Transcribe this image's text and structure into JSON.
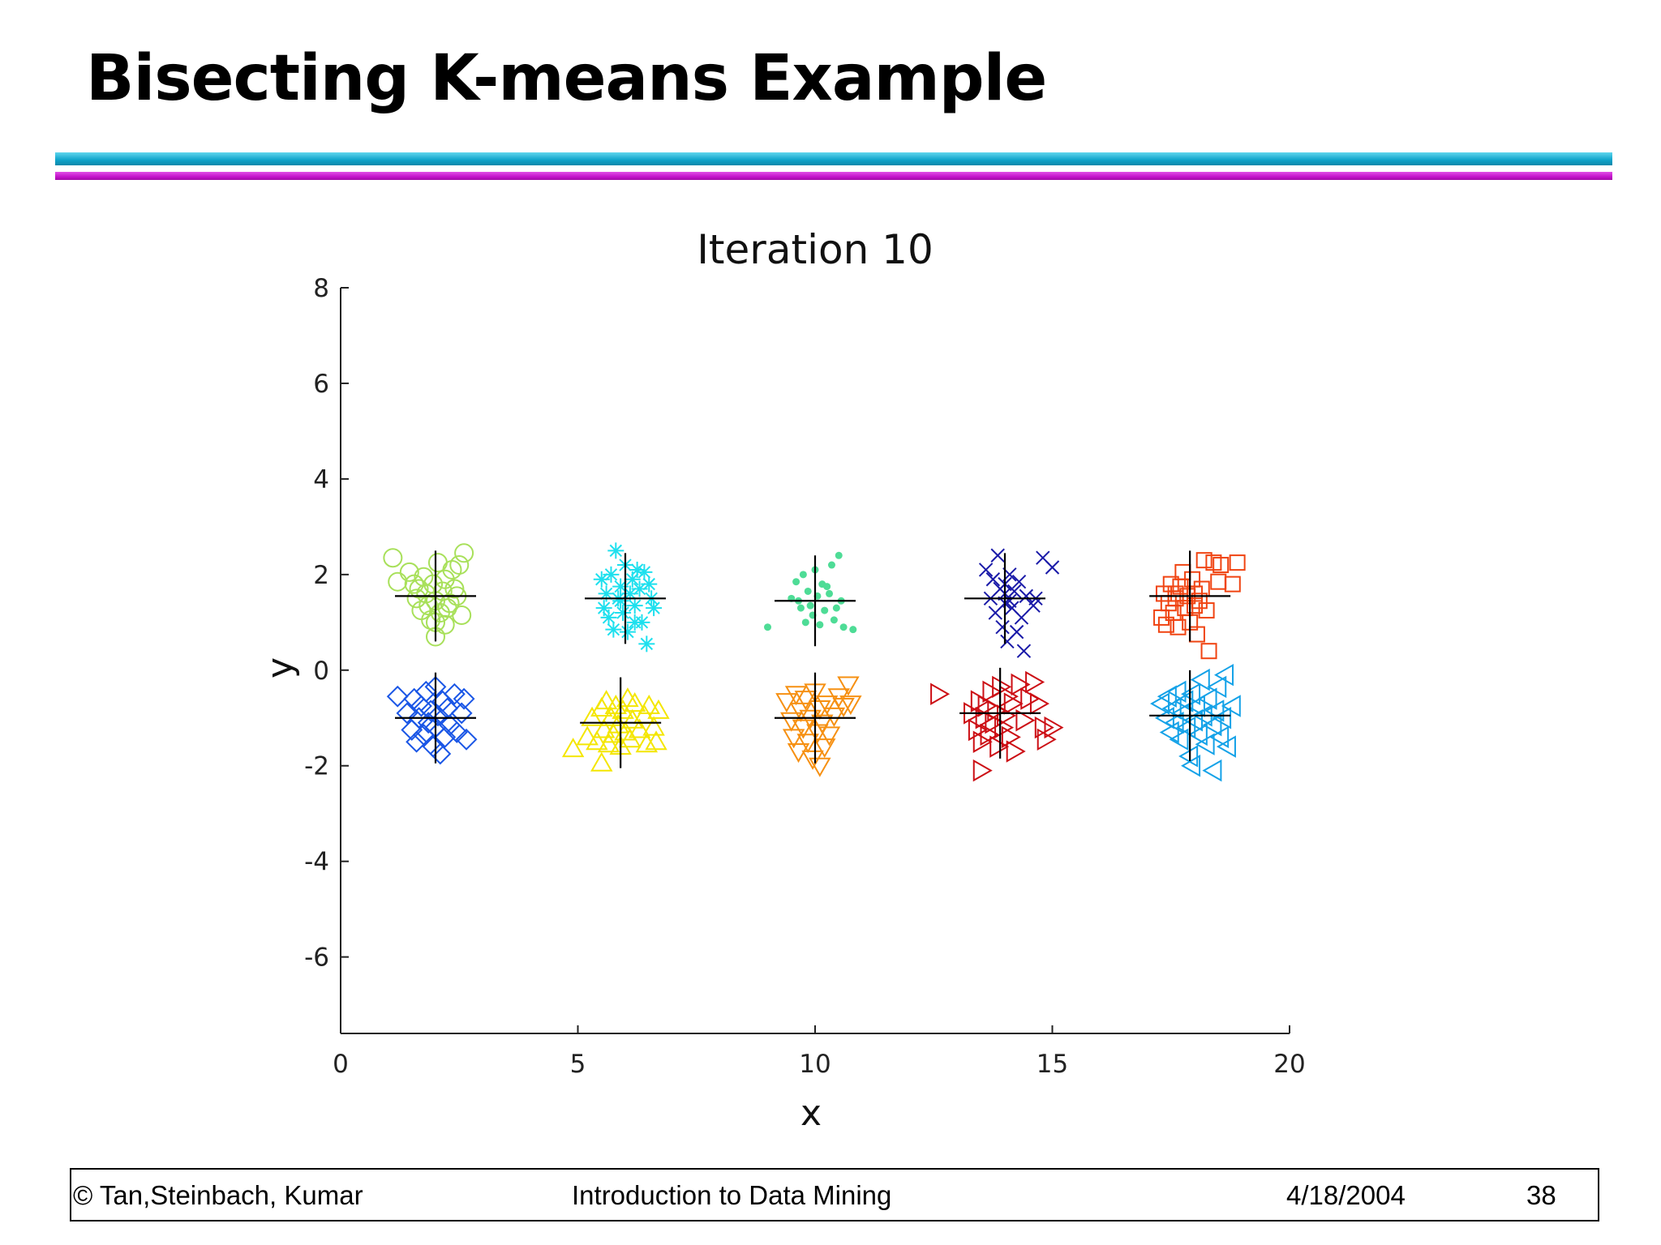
{
  "slide": {
    "title": "Bisecting K-means Example"
  },
  "footer": {
    "left": "© Tan,Steinbach, Kumar",
    "center": "Introduction to Data Mining",
    "date": "4/18/2004",
    "page": "38"
  },
  "chart_data": {
    "type": "scatter",
    "title": "Iteration 10",
    "xlabel": "x",
    "ylabel": "y",
    "xlim": [
      0,
      20
    ],
    "ylim": [
      -7.6,
      8
    ],
    "xticks": [
      0,
      5,
      10,
      15,
      20
    ],
    "yticks": [
      -6,
      -4,
      -2,
      0,
      2,
      4,
      6,
      8
    ],
    "grid": false,
    "legend": "none",
    "clusters": [
      {
        "marker": "circle",
        "color": "#a8e05a",
        "center": [
          2.0,
          1.55
        ],
        "points": [
          [
            1.1,
            2.35
          ],
          [
            1.2,
            1.85
          ],
          [
            1.45,
            2.05
          ],
          [
            1.55,
            1.8
          ],
          [
            1.6,
            1.5
          ],
          [
            1.7,
            1.25
          ],
          [
            1.75,
            1.95
          ],
          [
            1.8,
            1.6
          ],
          [
            1.85,
            1.35
          ],
          [
            1.9,
            1.05
          ],
          [
            1.95,
            1.8
          ],
          [
            2.0,
            0.7
          ],
          [
            2.0,
            1.45
          ],
          [
            2.05,
            2.25
          ],
          [
            2.1,
            1.2
          ],
          [
            2.15,
            1.65
          ],
          [
            2.2,
            0.95
          ],
          [
            2.2,
            1.9
          ],
          [
            2.3,
            1.4
          ],
          [
            2.35,
            2.1
          ],
          [
            2.4,
            1.7
          ],
          [
            2.45,
            1.55
          ],
          [
            2.5,
            2.2
          ],
          [
            2.55,
            1.15
          ],
          [
            2.6,
            2.45
          ],
          [
            2.0,
            1.0
          ],
          [
            1.65,
            1.7
          ],
          [
            2.25,
            1.3
          ]
        ]
      },
      {
        "marker": "star",
        "color": "#1ee0ee",
        "center": [
          6.0,
          1.5
        ],
        "points": [
          [
            5.5,
            1.9
          ],
          [
            5.55,
            1.3
          ],
          [
            5.6,
            1.6
          ],
          [
            5.65,
            1.1
          ],
          [
            5.7,
            2.0
          ],
          [
            5.75,
            0.85
          ],
          [
            5.8,
            2.5
          ],
          [
            5.85,
            1.5
          ],
          [
            5.9,
            1.75
          ],
          [
            5.95,
            1.2
          ],
          [
            6.0,
            2.2
          ],
          [
            6.05,
            0.8
          ],
          [
            6.1,
            1.6
          ],
          [
            6.15,
            1.9
          ],
          [
            6.2,
            1.35
          ],
          [
            6.25,
            2.1
          ],
          [
            6.3,
            1.7
          ],
          [
            6.35,
            1.0
          ],
          [
            6.4,
            2.05
          ],
          [
            6.45,
            0.55
          ],
          [
            6.5,
            1.8
          ],
          [
            6.55,
            1.5
          ],
          [
            6.6,
            1.3
          ],
          [
            5.9,
            1.45
          ],
          [
            6.2,
            1.0
          ]
        ]
      },
      {
        "marker": "dot",
        "color": "#4edc96",
        "center": [
          10.0,
          1.45
        ],
        "points": [
          [
            9.0,
            0.9
          ],
          [
            9.5,
            1.5
          ],
          [
            9.6,
            1.85
          ],
          [
            9.7,
            1.3
          ],
          [
            9.75,
            2.0
          ],
          [
            9.8,
            1.0
          ],
          [
            9.85,
            1.65
          ],
          [
            9.9,
            1.35
          ],
          [
            10.0,
            2.1
          ],
          [
            10.05,
            1.55
          ],
          [
            10.1,
            0.95
          ],
          [
            10.15,
            1.8
          ],
          [
            10.2,
            1.25
          ],
          [
            10.3,
            1.6
          ],
          [
            10.35,
            2.2
          ],
          [
            10.4,
            1.05
          ],
          [
            10.5,
            2.4
          ],
          [
            10.55,
            1.45
          ],
          [
            10.6,
            0.9
          ],
          [
            10.8,
            0.85
          ],
          [
            9.65,
            1.45
          ],
          [
            10.25,
            1.75
          ],
          [
            9.95,
            1.15
          ],
          [
            10.45,
            1.3
          ]
        ]
      },
      {
        "marker": "x",
        "color": "#1a1aa8",
        "center": [
          14.0,
          1.5
        ],
        "points": [
          [
            13.6,
            2.1
          ],
          [
            13.7,
            1.5
          ],
          [
            13.75,
            1.9
          ],
          [
            13.8,
            1.2
          ],
          [
            13.85,
            2.4
          ],
          [
            13.9,
            1.7
          ],
          [
            13.95,
            0.9
          ],
          [
            14.0,
            1.4
          ],
          [
            14.0,
            1.8
          ],
          [
            14.05,
            0.6
          ],
          [
            14.1,
            2.0
          ],
          [
            14.15,
            1.3
          ],
          [
            14.2,
            1.65
          ],
          [
            14.25,
            0.8
          ],
          [
            14.3,
            1.85
          ],
          [
            14.35,
            1.1
          ],
          [
            14.4,
            0.4
          ],
          [
            14.45,
            1.55
          ],
          [
            14.6,
            1.35
          ],
          [
            14.65,
            1.5
          ],
          [
            14.8,
            2.35
          ],
          [
            15.0,
            2.15
          ],
          [
            14.0,
            1.6
          ],
          [
            14.1,
            1.45
          ]
        ]
      },
      {
        "marker": "square",
        "color": "#f04412",
        "center": [
          17.9,
          1.55
        ],
        "points": [
          [
            17.3,
            1.1
          ],
          [
            17.35,
            1.6
          ],
          [
            17.4,
            0.95
          ],
          [
            17.45,
            1.4
          ],
          [
            17.5,
            1.8
          ],
          [
            17.55,
            1.2
          ],
          [
            17.6,
            1.5
          ],
          [
            17.65,
            0.9
          ],
          [
            17.7,
            1.75
          ],
          [
            17.75,
            2.05
          ],
          [
            17.8,
            1.3
          ],
          [
            17.85,
            1.55
          ],
          [
            17.9,
            1.0
          ],
          [
            17.95,
            1.9
          ],
          [
            18.0,
            1.35
          ],
          [
            18.0,
            1.6
          ],
          [
            18.05,
            0.75
          ],
          [
            18.1,
            1.45
          ],
          [
            18.15,
            1.7
          ],
          [
            18.2,
            2.3
          ],
          [
            18.25,
            1.25
          ],
          [
            18.3,
            0.4
          ],
          [
            18.4,
            2.25
          ],
          [
            18.5,
            1.85
          ],
          [
            18.55,
            2.2
          ],
          [
            18.8,
            1.8
          ],
          [
            18.9,
            2.25
          ],
          [
            17.6,
            1.6
          ]
        ]
      },
      {
        "marker": "diamond",
        "color": "#1a56e6",
        "center": [
          2.0,
          -1.0
        ],
        "points": [
          [
            1.2,
            -0.55
          ],
          [
            1.4,
            -0.9
          ],
          [
            1.5,
            -1.25
          ],
          [
            1.55,
            -0.6
          ],
          [
            1.6,
            -1.5
          ],
          [
            1.65,
            -1.0
          ],
          [
            1.7,
            -0.75
          ],
          [
            1.75,
            -1.35
          ],
          [
            1.8,
            -0.45
          ],
          [
            1.85,
            -1.1
          ],
          [
            1.9,
            -0.85
          ],
          [
            1.95,
            -1.6
          ],
          [
            2.0,
            -0.35
          ],
          [
            2.0,
            -1.2
          ],
          [
            2.05,
            -0.95
          ],
          [
            2.1,
            -1.75
          ],
          [
            2.15,
            -0.65
          ],
          [
            2.2,
            -1.4
          ],
          [
            2.25,
            -0.8
          ],
          [
            2.3,
            -1.15
          ],
          [
            2.4,
            -0.5
          ],
          [
            2.45,
            -1.3
          ],
          [
            2.55,
            -0.9
          ],
          [
            2.6,
            -0.6
          ],
          [
            2.65,
            -1.45
          ]
        ]
      },
      {
        "marker": "triangle-up",
        "color": "#f4e600",
        "center": [
          5.9,
          -1.1
        ],
        "points": [
          [
            4.9,
            -1.65
          ],
          [
            5.2,
            -1.4
          ],
          [
            5.3,
            -1.0
          ],
          [
            5.4,
            -1.5
          ],
          [
            5.5,
            -0.8
          ],
          [
            5.5,
            -1.95
          ],
          [
            5.55,
            -1.25
          ],
          [
            5.6,
            -0.65
          ],
          [
            5.65,
            -1.55
          ],
          [
            5.7,
            -1.0
          ],
          [
            5.75,
            -1.35
          ],
          [
            5.8,
            -0.75
          ],
          [
            5.85,
            -1.15
          ],
          [
            5.9,
            -1.6
          ],
          [
            5.95,
            -0.85
          ],
          [
            6.0,
            -1.3
          ],
          [
            6.05,
            -0.6
          ],
          [
            6.1,
            -1.45
          ],
          [
            6.15,
            -1.05
          ],
          [
            6.2,
            -0.7
          ],
          [
            6.3,
            -1.25
          ],
          [
            6.4,
            -0.95
          ],
          [
            6.45,
            -1.55
          ],
          [
            6.5,
            -0.75
          ],
          [
            6.6,
            -1.2
          ],
          [
            6.65,
            -1.5
          ],
          [
            6.7,
            -0.85
          ]
        ]
      },
      {
        "marker": "triangle-down",
        "color": "#f69012",
        "center": [
          10.0,
          -1.0
        ],
        "points": [
          [
            9.4,
            -0.65
          ],
          [
            9.5,
            -1.05
          ],
          [
            9.55,
            -1.4
          ],
          [
            9.6,
            -0.5
          ],
          [
            9.65,
            -1.7
          ],
          [
            9.7,
            -0.85
          ],
          [
            9.75,
            -1.2
          ],
          [
            9.8,
            -0.6
          ],
          [
            9.85,
            -1.5
          ],
          [
            9.9,
            -1.0
          ],
          [
            9.95,
            -1.85
          ],
          [
            10.0,
            -0.45
          ],
          [
            10.05,
            -1.3
          ],
          [
            10.1,
            -0.8
          ],
          [
            10.1,
            -2.0
          ],
          [
            10.15,
            -1.1
          ],
          [
            10.2,
            -1.6
          ],
          [
            10.25,
            -0.7
          ],
          [
            10.3,
            -1.35
          ],
          [
            10.4,
            -0.95
          ],
          [
            10.5,
            -0.55
          ],
          [
            10.6,
            -0.75
          ],
          [
            10.7,
            -0.3
          ],
          [
            10.75,
            -0.7
          ]
        ]
      },
      {
        "marker": "triangle-right",
        "color": "#cc0e14",
        "center": [
          13.9,
          -0.9
        ],
        "points": [
          [
            12.6,
            -0.5
          ],
          [
            13.3,
            -0.9
          ],
          [
            13.4,
            -1.25
          ],
          [
            13.45,
            -0.65
          ],
          [
            13.5,
            -1.5
          ],
          [
            13.55,
            -1.0
          ],
          [
            13.6,
            -0.75
          ],
          [
            13.65,
            -1.35
          ],
          [
            13.7,
            -0.45
          ],
          [
            13.75,
            -1.1
          ],
          [
            13.8,
            -0.85
          ],
          [
            13.85,
            -1.6
          ],
          [
            13.9,
            -0.35
          ],
          [
            13.95,
            -1.2
          ],
          [
            14.0,
            -0.95
          ],
          [
            14.05,
            -0.55
          ],
          [
            14.1,
            -1.4
          ],
          [
            14.15,
            -0.7
          ],
          [
            14.2,
            -1.7
          ],
          [
            14.3,
            -0.3
          ],
          [
            14.4,
            -1.05
          ],
          [
            14.5,
            -0.6
          ],
          [
            14.6,
            -0.25
          ],
          [
            14.7,
            -0.7
          ],
          [
            14.8,
            -1.2
          ],
          [
            14.85,
            -1.45
          ],
          [
            13.5,
            -2.1
          ],
          [
            15.0,
            -1.2
          ]
        ]
      },
      {
        "marker": "triangle-left",
        "color": "#14a2e8",
        "center": [
          17.9,
          -0.95
        ],
        "points": [
          [
            17.3,
            -0.7
          ],
          [
            17.4,
            -1.0
          ],
          [
            17.45,
            -0.55
          ],
          [
            17.5,
            -1.3
          ],
          [
            17.55,
            -0.8
          ],
          [
            17.6,
            -1.1
          ],
          [
            17.65,
            -0.45
          ],
          [
            17.7,
            -1.45
          ],
          [
            17.75,
            -0.9
          ],
          [
            17.8,
            -0.65
          ],
          [
            17.85,
            -1.2
          ],
          [
            17.9,
            -1.8
          ],
          [
            17.95,
            -0.5
          ],
          [
            18.0,
            -1.05
          ],
          [
            18.05,
            -0.75
          ],
          [
            18.1,
            -1.35
          ],
          [
            18.15,
            -0.2
          ],
          [
            18.2,
            -0.95
          ],
          [
            18.25,
            -1.55
          ],
          [
            18.3,
            -0.6
          ],
          [
            18.4,
            -1.15
          ],
          [
            18.45,
            -0.85
          ],
          [
            18.5,
            -0.35
          ],
          [
            18.55,
            -1.4
          ],
          [
            18.6,
            -1.0
          ],
          [
            18.65,
            -0.1
          ],
          [
            18.7,
            -1.6
          ],
          [
            18.4,
            -2.1
          ],
          [
            18.8,
            -0.75
          ],
          [
            17.95,
            -2.0
          ]
        ]
      }
    ]
  }
}
